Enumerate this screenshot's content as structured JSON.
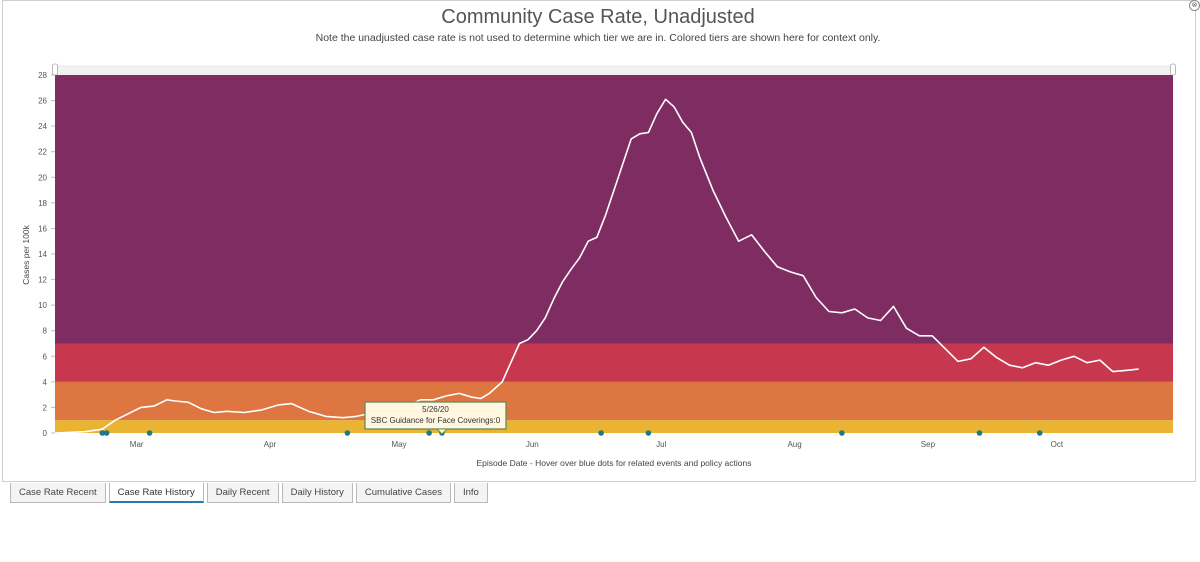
{
  "window": {
    "close_glyph": "⊗"
  },
  "tabs": [
    {
      "label": "Case Rate Recent",
      "active": false
    },
    {
      "label": "Case Rate History",
      "active": true
    },
    {
      "label": "Daily Recent",
      "active": false
    },
    {
      "label": "Daily History",
      "active": false
    },
    {
      "label": "Cumulative Cases",
      "active": false
    },
    {
      "label": "Info",
      "active": false
    }
  ],
  "tooltip": {
    "date": "5/26/20",
    "text": "SBC Guidance for Face Coverings:0"
  },
  "chart_data": {
    "type": "line",
    "title": "Community Case Rate, Unadjusted",
    "subtitle": "Note the unadjusted case rate is not used to determine which tier we are in. Colored tiers are shown here for context only.",
    "xlabel": "Episode Date - Hover over blue dots for related events and policy actions",
    "ylabel": "Cases per 100k",
    "ylim": [
      0,
      28
    ],
    "yticks": [
      0,
      2,
      4,
      6,
      8,
      10,
      12,
      14,
      16,
      18,
      20,
      22,
      24,
      26,
      28
    ],
    "xlim": [
      "2020-02-11",
      "2020-10-28"
    ],
    "xticks": [
      {
        "date": "2020-03-01",
        "label": "Mar"
      },
      {
        "date": "2020-04-01",
        "label": "Apr"
      },
      {
        "date": "2020-05-01",
        "label": "May"
      },
      {
        "date": "2020-06-01",
        "label": "Jun"
      },
      {
        "date": "2020-07-01",
        "label": "Jul"
      },
      {
        "date": "2020-08-01",
        "label": "Aug"
      },
      {
        "date": "2020-09-01",
        "label": "Sep"
      },
      {
        "date": "2020-10-01",
        "label": "Oct"
      }
    ],
    "tiers": [
      {
        "from": 0,
        "to": 1,
        "color": "#e8b431"
      },
      {
        "from": 1,
        "to": 4,
        "color": "#dd7641"
      },
      {
        "from": 4,
        "to": 7,
        "color": "#c7384e"
      },
      {
        "from": 7,
        "to": 28,
        "color": "#7e2c62"
      }
    ],
    "line_color": "#ffffff",
    "event_dot_color": "#1d7a8c",
    "events": [
      "2020-02-22",
      "2020-02-23",
      "2020-03-04",
      "2020-04-19",
      "2020-05-08",
      "2020-05-11",
      "2020-06-17",
      "2020-06-28",
      "2020-08-12",
      "2020-09-13",
      "2020-09-27"
    ],
    "series": [
      {
        "values": [
          [
            "2020-02-11",
            0
          ],
          [
            "2020-02-18",
            0.1
          ],
          [
            "2020-02-22",
            0.3
          ],
          [
            "2020-02-25",
            1.0
          ],
          [
            "2020-02-28",
            1.5
          ],
          [
            "2020-03-02",
            2.0
          ],
          [
            "2020-03-05",
            2.1
          ],
          [
            "2020-03-08",
            2.6
          ],
          [
            "2020-03-10",
            2.5
          ],
          [
            "2020-03-13",
            2.4
          ],
          [
            "2020-03-16",
            1.9
          ],
          [
            "2020-03-19",
            1.6
          ],
          [
            "2020-03-22",
            1.7
          ],
          [
            "2020-03-26",
            1.6
          ],
          [
            "2020-03-30",
            1.8
          ],
          [
            "2020-04-03",
            2.2
          ],
          [
            "2020-04-06",
            2.3
          ],
          [
            "2020-04-10",
            1.7
          ],
          [
            "2020-04-14",
            1.3
          ],
          [
            "2020-04-18",
            1.2
          ],
          [
            "2020-04-21",
            1.3
          ],
          [
            "2020-04-24",
            1.5
          ],
          [
            "2020-04-27",
            1.9
          ],
          [
            "2020-05-01",
            2.0
          ],
          [
            "2020-05-04",
            2.3
          ],
          [
            "2020-05-06",
            2.6
          ],
          [
            "2020-05-09",
            2.6
          ],
          [
            "2020-05-12",
            2.9
          ],
          [
            "2020-05-15",
            3.1
          ],
          [
            "2020-05-18",
            2.8
          ],
          [
            "2020-05-20",
            2.7
          ],
          [
            "2020-05-22",
            3.1
          ],
          [
            "2020-05-25",
            4.0
          ],
          [
            "2020-05-27",
            5.5
          ],
          [
            "2020-05-29",
            7.0
          ],
          [
            "2020-05-31",
            7.3
          ],
          [
            "2020-06-02",
            8.0
          ],
          [
            "2020-06-04",
            9.0
          ],
          [
            "2020-06-06",
            10.5
          ],
          [
            "2020-06-08",
            11.8
          ],
          [
            "2020-06-10",
            12.8
          ],
          [
            "2020-06-12",
            13.7
          ],
          [
            "2020-06-14",
            15.0
          ],
          [
            "2020-06-16",
            15.3
          ],
          [
            "2020-06-18",
            17.0
          ],
          [
            "2020-06-20",
            19.0
          ],
          [
            "2020-06-22",
            21.0
          ],
          [
            "2020-06-24",
            23.0
          ],
          [
            "2020-06-26",
            23.4
          ],
          [
            "2020-06-28",
            23.5
          ],
          [
            "2020-06-30",
            25.0
          ],
          [
            "2020-07-02",
            26.1
          ],
          [
            "2020-07-04",
            25.5
          ],
          [
            "2020-07-06",
            24.3
          ],
          [
            "2020-07-08",
            23.5
          ],
          [
            "2020-07-10",
            21.5
          ],
          [
            "2020-07-13",
            19.0
          ],
          [
            "2020-07-16",
            16.9
          ],
          [
            "2020-07-19",
            15.0
          ],
          [
            "2020-07-22",
            15.5
          ],
          [
            "2020-07-25",
            14.2
          ],
          [
            "2020-07-28",
            13.0
          ],
          [
            "2020-07-31",
            12.6
          ],
          [
            "2020-08-03",
            12.3
          ],
          [
            "2020-08-06",
            10.6
          ],
          [
            "2020-08-09",
            9.5
          ],
          [
            "2020-08-12",
            9.4
          ],
          [
            "2020-08-15",
            9.7
          ],
          [
            "2020-08-18",
            9.0
          ],
          [
            "2020-08-21",
            8.8
          ],
          [
            "2020-08-24",
            9.9
          ],
          [
            "2020-08-27",
            8.2
          ],
          [
            "2020-08-30",
            7.6
          ],
          [
            "2020-09-02",
            7.6
          ],
          [
            "2020-09-05",
            6.6
          ],
          [
            "2020-09-08",
            5.6
          ],
          [
            "2020-09-11",
            5.8
          ],
          [
            "2020-09-14",
            6.7
          ],
          [
            "2020-09-17",
            5.9
          ],
          [
            "2020-09-20",
            5.3
          ],
          [
            "2020-09-23",
            5.1
          ],
          [
            "2020-09-26",
            5.5
          ],
          [
            "2020-09-29",
            5.3
          ],
          [
            "2020-10-02",
            5.7
          ],
          [
            "2020-10-05",
            6.0
          ],
          [
            "2020-10-08",
            5.5
          ],
          [
            "2020-10-11",
            5.7
          ],
          [
            "2020-10-14",
            4.8
          ],
          [
            "2020-10-17",
            4.9
          ],
          [
            "2020-10-20",
            5.0
          ]
        ]
      }
    ]
  }
}
